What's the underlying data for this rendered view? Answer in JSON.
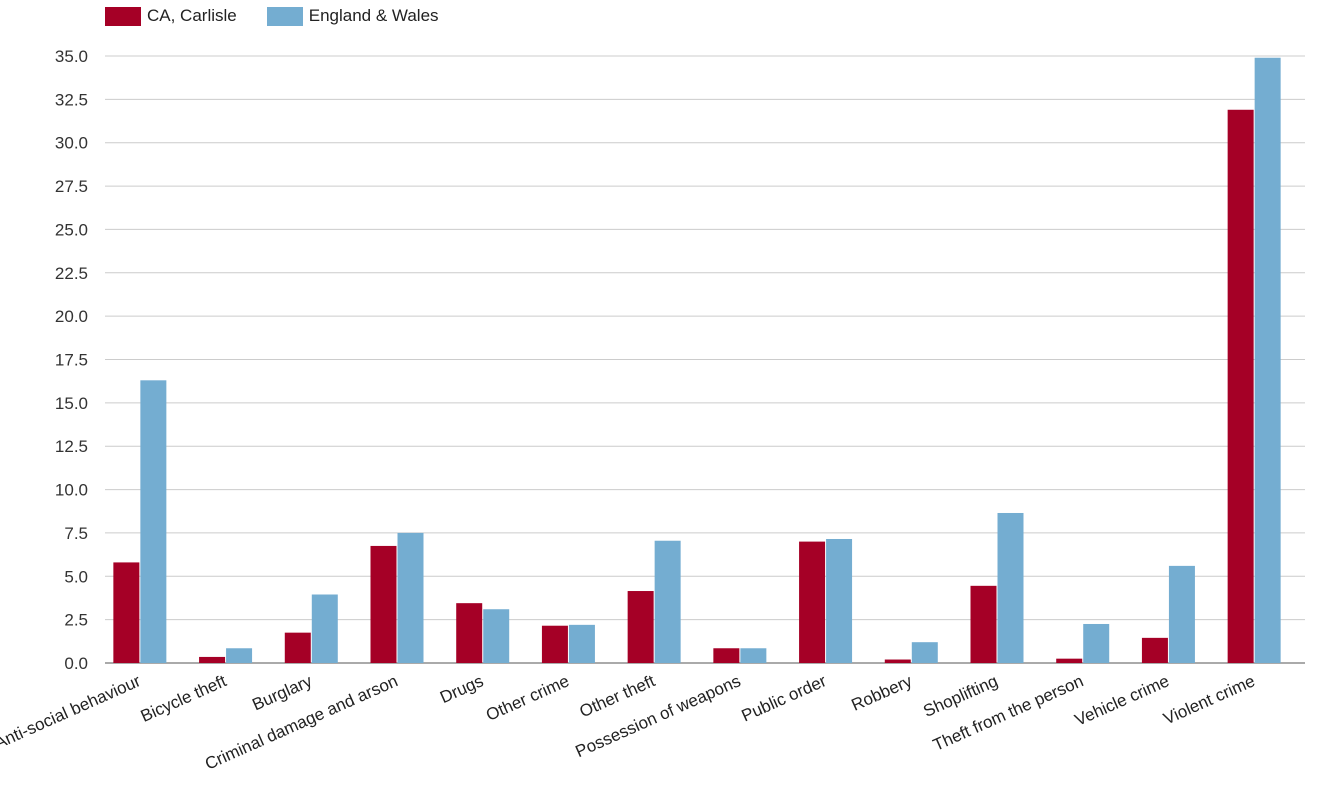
{
  "chart_data": {
    "type": "bar",
    "categories": [
      "Anti-social behaviour",
      "Bicycle theft",
      "Burglary",
      "Criminal damage and arson",
      "Drugs",
      "Other crime",
      "Other theft",
      "Possession of weapons",
      "Public order",
      "Robbery",
      "Shoplifting",
      "Theft from the person",
      "Vehicle crime",
      "Violent crime"
    ],
    "series": [
      {
        "name": "CA, Carlisle",
        "color": "#a50026",
        "values": [
          5.8,
          0.35,
          1.75,
          6.75,
          3.45,
          2.15,
          4.15,
          0.85,
          7.0,
          0.2,
          4.45,
          0.25,
          1.45,
          31.9
        ]
      },
      {
        "name": "England & Wales",
        "color": "#74add1",
        "values": [
          16.3,
          0.85,
          3.95,
          7.5,
          3.1,
          2.2,
          7.05,
          0.85,
          7.15,
          1.2,
          8.65,
          2.25,
          5.6,
          34.9
        ]
      }
    ],
    "title": "",
    "xlabel": "",
    "ylabel": "",
    "ylim": [
      0,
      35
    ],
    "yticks": [
      "0.0",
      "2.5",
      "5.0",
      "7.5",
      "10.0",
      "12.5",
      "15.0",
      "17.5",
      "20.0",
      "22.5",
      "25.0",
      "27.5",
      "30.0",
      "32.5",
      "35.0"
    ],
    "grid": true,
    "legend_position": "top-left"
  }
}
